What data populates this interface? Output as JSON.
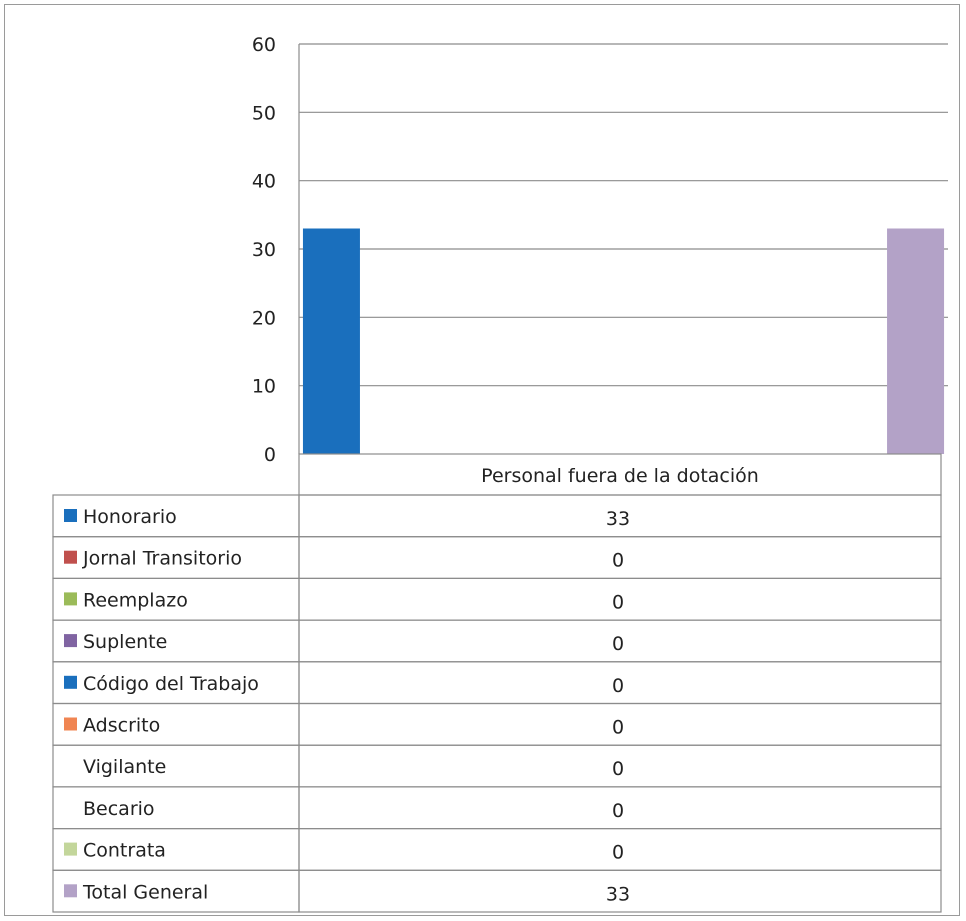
{
  "chart_data": {
    "type": "bar",
    "categories": [
      "Personal fuera de la dotación"
    ],
    "series": [
      {
        "name": "Honorario",
        "values": [
          33
        ],
        "color": "#1a6fbd"
      },
      {
        "name": "Jornal Transitorio",
        "values": [
          0
        ],
        "color": "#c0504d"
      },
      {
        "name": "Reemplazo",
        "values": [
          0
        ],
        "color": "#9bbb59"
      },
      {
        "name": "Suplente",
        "values": [
          0
        ],
        "color": "#8064a2"
      },
      {
        "name": "Código del Trabajo",
        "values": [
          0
        ],
        "color": "#1a6fbd"
      },
      {
        "name": "Adscrito",
        "values": [
          0
        ],
        "color": "#f08552"
      },
      {
        "name": "Vigilante",
        "values": [
          0
        ],
        "color": null
      },
      {
        "name": "Becario",
        "values": [
          0
        ],
        "color": null
      },
      {
        "name": "Contrata",
        "values": [
          0
        ],
        "color": "#c3d69b"
      },
      {
        "name": "Total General",
        "values": [
          33
        ],
        "color": "#b3a2c7"
      }
    ],
    "y_ticks": [
      "0",
      "10",
      "20",
      "30",
      "40",
      "50",
      "60"
    ],
    "ylim": [
      0,
      60
    ],
    "grid": true,
    "legend": "data-table-left",
    "title": "",
    "xlabel": "",
    "ylabel": ""
  }
}
